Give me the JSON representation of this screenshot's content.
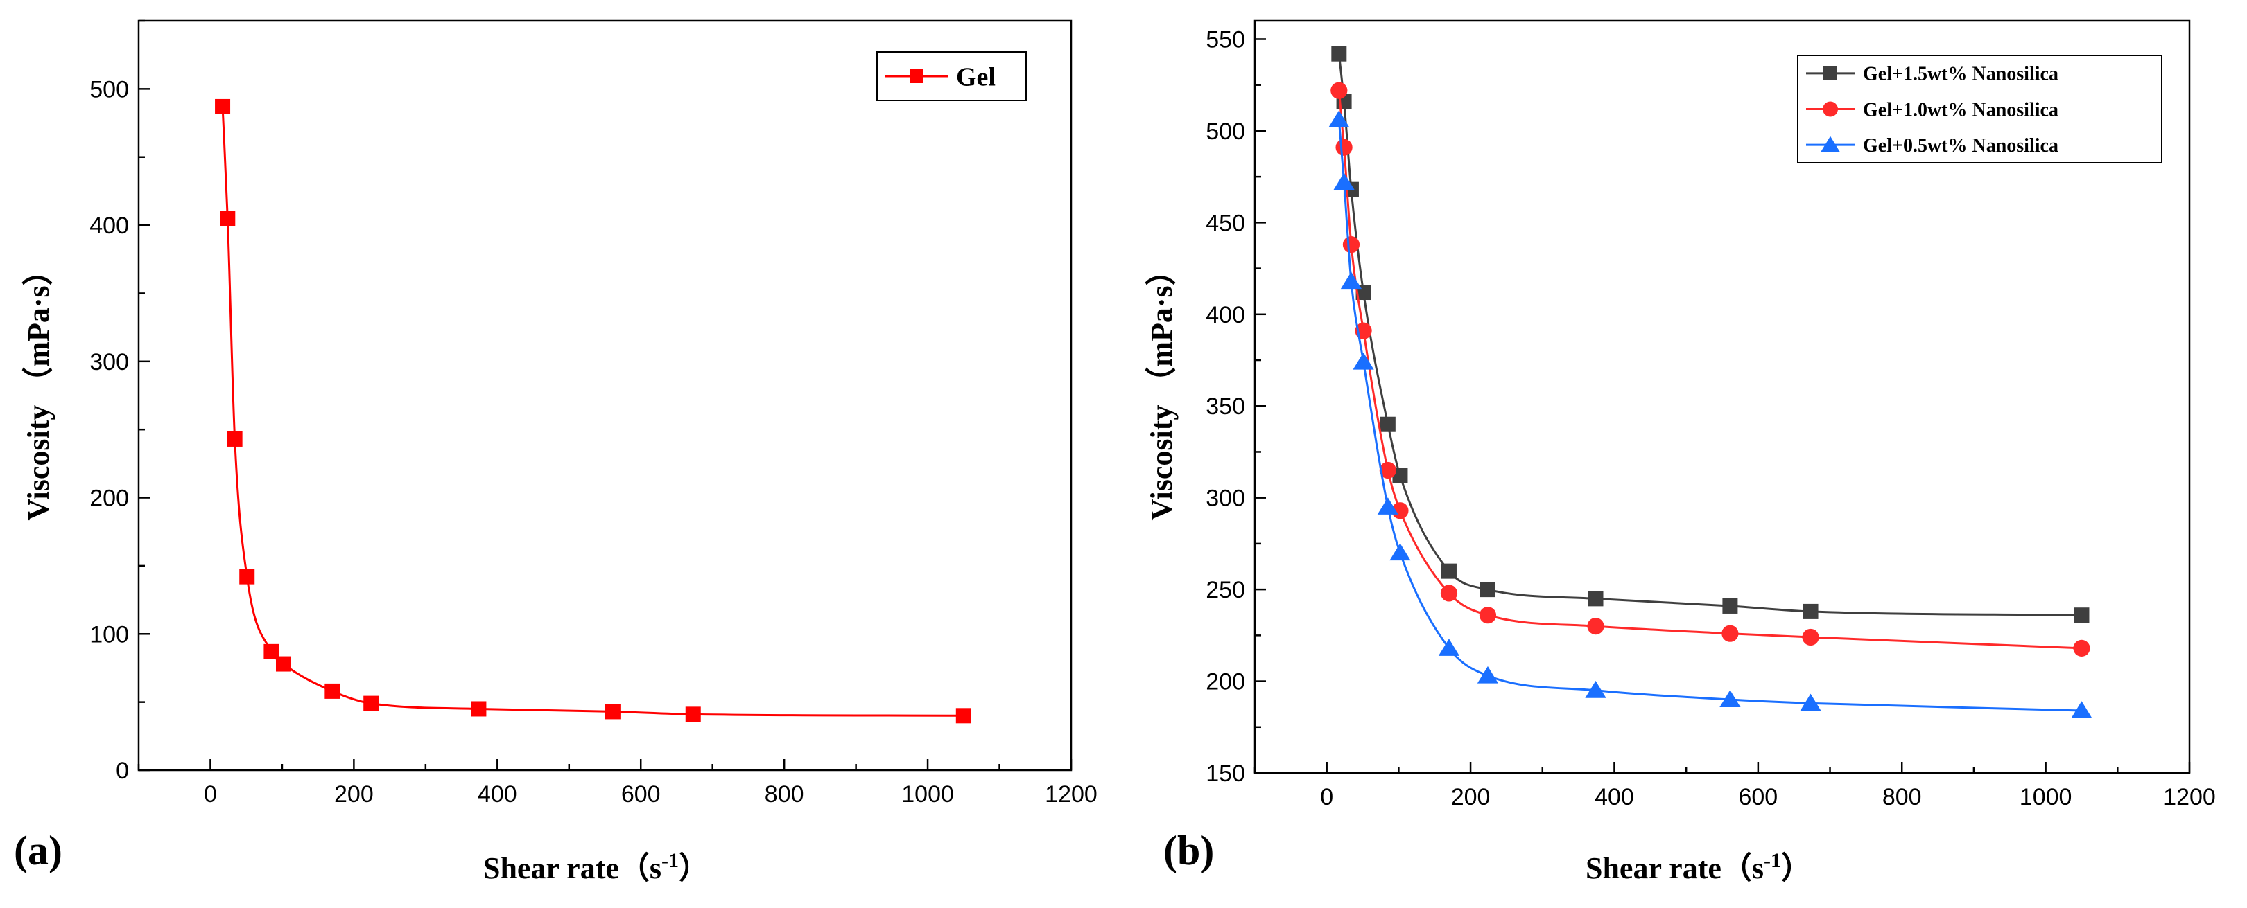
{
  "chart_data": [
    {
      "id": "a",
      "type": "line",
      "panel_label": "(a)",
      "xlabel": "Shear rate（s",
      "xlabel_sup": "-1",
      "xlabel_close": "）",
      "ylabel": "Viscosity （mPa·s）",
      "xlim": [
        -100,
        1200
      ],
      "ylim": [
        0,
        550
      ],
      "xticks": [
        0,
        200,
        400,
        600,
        800,
        1000,
        1200
      ],
      "yticks": [
        0,
        100,
        200,
        300,
        400,
        500
      ],
      "legend_position": "top-right",
      "series": [
        {
          "name": "Gel",
          "color": "#ff0000",
          "marker": "square",
          "x": [
            17,
            24,
            34,
            51,
            85,
            102,
            170,
            224,
            374,
            561,
            673,
            1050
          ],
          "y": [
            487,
            405,
            243,
            142,
            87,
            78,
            58,
            49,
            45,
            43,
            41,
            40
          ]
        }
      ]
    },
    {
      "id": "b",
      "type": "line",
      "panel_label": "(b)",
      "xlabel": "Shear rate（s",
      "xlabel_sup": "-1",
      "xlabel_close": "）",
      "ylabel": "Viscosity （mPa·s）",
      "xlim": [
        -100,
        1200
      ],
      "ylim": [
        150,
        560
      ],
      "xticks": [
        0,
        200,
        400,
        600,
        800,
        1000,
        1200
      ],
      "yticks": [
        150,
        200,
        250,
        300,
        350,
        400,
        450,
        500,
        550
      ],
      "legend_position": "top-right",
      "series": [
        {
          "name": "Gel+1.5wt% Nanosilica",
          "color": "#3f3f3f",
          "marker": "square",
          "x": [
            17,
            24,
            34,
            51,
            85,
            102,
            170,
            224,
            374,
            561,
            673,
            1050
          ],
          "y": [
            542,
            516,
            468,
            412,
            340,
            312,
            260,
            250,
            245,
            241,
            238,
            236
          ]
        },
        {
          "name": "Gel+1.0wt% Nanosilica",
          "color": "#ff2a2a",
          "marker": "circle",
          "x": [
            17,
            24,
            34,
            51,
            85,
            102,
            170,
            224,
            374,
            561,
            673,
            1050
          ],
          "y": [
            522,
            491,
            438,
            391,
            315,
            293,
            248,
            236,
            230,
            226,
            224,
            218
          ]
        },
        {
          "name": "Gel+0.5wt% Nanosilica",
          "color": "#1a6fff",
          "marker": "triangle",
          "x": [
            17,
            24,
            34,
            51,
            85,
            102,
            170,
            224,
            374,
            561,
            673,
            1050
          ],
          "y": [
            506,
            472,
            418,
            374,
            295,
            270,
            218,
            203,
            195,
            190,
            188,
            184
          ]
        }
      ]
    }
  ]
}
